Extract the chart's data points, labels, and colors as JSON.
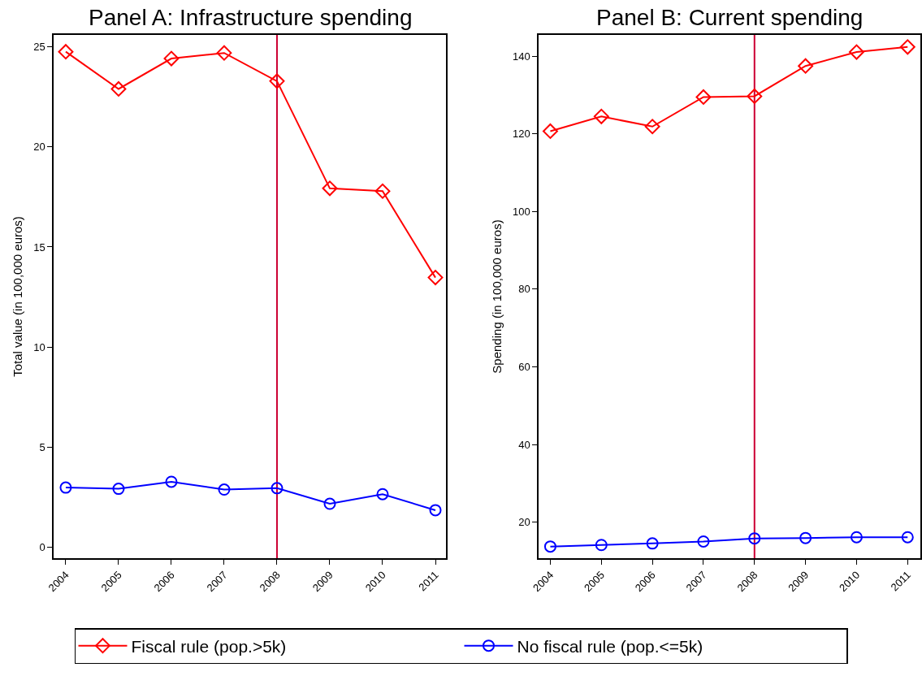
{
  "chart_data": [
    {
      "type": "line",
      "title": "Panel A: Infrastructure spending",
      "ylabel": "Total value (in 100,000 euros)",
      "x": [
        2004,
        2005,
        2006,
        2007,
        2008,
        2009,
        2010,
        2011
      ],
      "series": [
        {
          "name": "Fiscal rule (pop.>5k)",
          "color": "#ff0000",
          "marker": "diamond",
          "values": [
            24.76,
            22.9,
            24.42,
            24.7,
            23.29,
            17.93,
            17.79,
            13.47
          ]
        },
        {
          "name": "No fiscal rule (pop.<=5k)",
          "color": "#0000ff",
          "marker": "circle",
          "values": [
            2.97,
            2.91,
            3.26,
            2.87,
            2.94,
            2.16,
            2.64,
            1.84
          ]
        }
      ],
      "xlim": [
        2003.77,
        2011.2
      ],
      "xticks": [
        2004,
        2005,
        2006,
        2007,
        2008,
        2009,
        2010,
        2011
      ],
      "ylim": [
        -0.56,
        25.6
      ],
      "yticks": [
        0,
        5,
        10,
        15,
        20,
        25
      ],
      "ref_lines": [
        {
          "axis": "x",
          "value": 2008,
          "color": "#cc0033"
        }
      ],
      "grid": false,
      "legend": "bottom",
      "line_style": "solid"
    },
    {
      "type": "line",
      "title": "Panel B: Current spending",
      "ylabel": "Spending (in 100,000 euros)",
      "x": [
        2004,
        2005,
        2006,
        2007,
        2008,
        2009,
        2010,
        2011
      ],
      "series": [
        {
          "name": "Fiscal rule (pop.>5k)",
          "color": "#ff0000",
          "marker": "diamond",
          "values": [
            120.7,
            124.5,
            121.9,
            129.5,
            129.7,
            137.5,
            141.1,
            142.4
          ]
        },
        {
          "name": "No fiscal rule (pop.<=5k)",
          "color": "#0000ff",
          "marker": "circle",
          "values": [
            13.7,
            14.1,
            14.5,
            15.0,
            15.8,
            15.9,
            16.1,
            16.1
          ]
        }
      ],
      "xlim": [
        2003.77,
        2011.25
      ],
      "xticks": [
        2004,
        2005,
        2006,
        2007,
        2008,
        2009,
        2010,
        2011
      ],
      "ylim": [
        10.7,
        145.5
      ],
      "yticks": [
        20,
        40,
        60,
        80,
        100,
        120,
        140
      ],
      "ref_lines": [
        {
          "axis": "x",
          "value": 2008,
          "color": "#cc0033"
        }
      ],
      "grid": false,
      "legend": "bottom",
      "line_style": "solid"
    }
  ]
}
